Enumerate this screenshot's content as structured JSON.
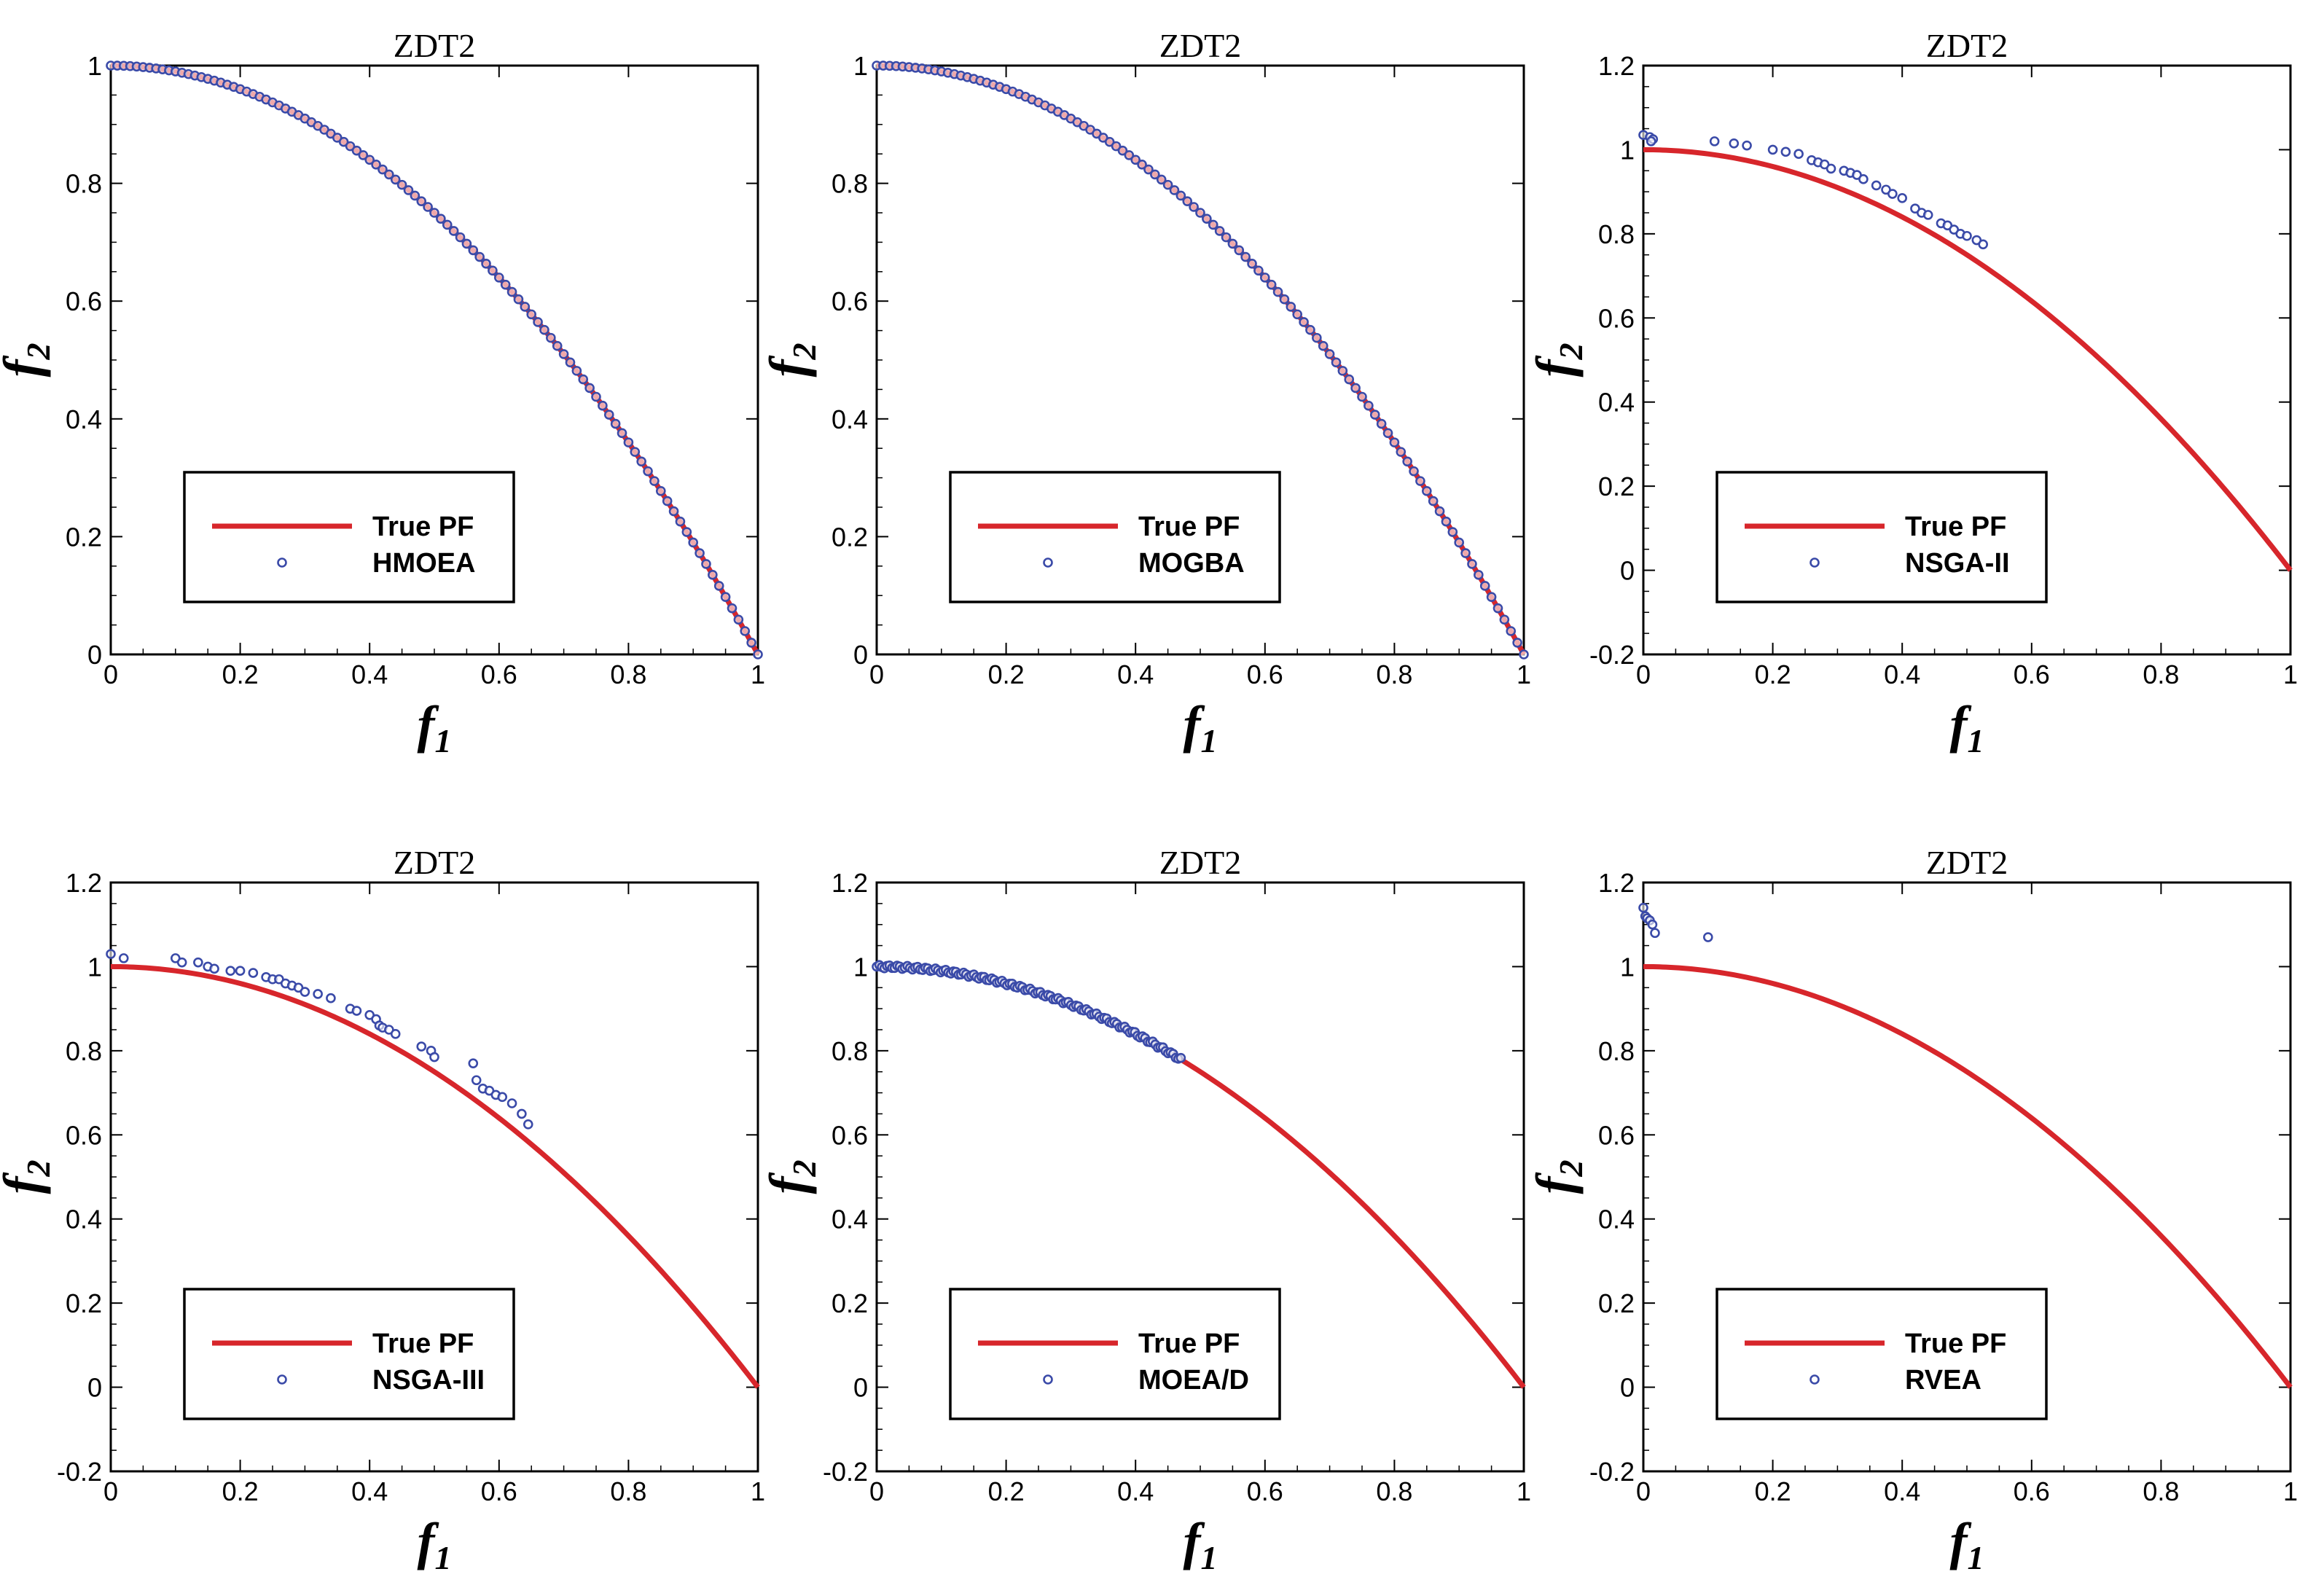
{
  "colors": {
    "true_pf": "#d7262b",
    "points": "#3a4aa8",
    "axis": "#000000"
  },
  "chart_data": [
    {
      "type": "scatter",
      "title": "ZDT2",
      "xlabel": "f1",
      "ylabel": "f2",
      "xlim": [
        0,
        1
      ],
      "ylim": [
        0,
        1
      ],
      "xticks": [
        "0",
        "0.2",
        "0.4",
        "0.6",
        "0.8",
        "1"
      ],
      "yticks": [
        "0",
        "0.2",
        "0.4",
        "0.6",
        "0.8",
        "1"
      ],
      "legend": {
        "placement": "lower-left",
        "line_label": "True PF",
        "marker_label": "HMOEA"
      },
      "series": [
        {
          "name": "True PF",
          "kind": "line",
          "function": "f2 = 1 - f1^2",
          "x": [
            0.0,
            0.2,
            0.4,
            0.6,
            0.8,
            1.0
          ],
          "y": [
            1.0,
            0.96,
            0.84,
            0.64,
            0.36,
            0.0
          ]
        },
        {
          "name": "HMOEA",
          "kind": "markers",
          "pattern": "uniform_on_front",
          "n_points": 101,
          "x_range": [
            0,
            1
          ]
        }
      ]
    },
    {
      "type": "scatter",
      "title": "ZDT2",
      "xlabel": "f1",
      "ylabel": "f2",
      "xlim": [
        0,
        1
      ],
      "ylim": [
        0,
        1
      ],
      "xticks": [
        "0",
        "0.2",
        "0.4",
        "0.6",
        "0.8",
        "1"
      ],
      "yticks": [
        "0",
        "0.2",
        "0.4",
        "0.6",
        "0.8",
        "1"
      ],
      "legend": {
        "placement": "lower-left",
        "line_label": "True PF",
        "marker_label": "MOGBA"
      },
      "series": [
        {
          "name": "True PF",
          "kind": "line",
          "function": "f2 = 1 - f1^2",
          "x": [
            0.0,
            0.2,
            0.4,
            0.6,
            0.8,
            1.0
          ],
          "y": [
            1.0,
            0.96,
            0.84,
            0.64,
            0.36,
            0.0
          ]
        },
        {
          "name": "MOGBA",
          "kind": "markers",
          "pattern": "uniform_on_front",
          "n_points": 101,
          "x_range": [
            0,
            1
          ]
        }
      ]
    },
    {
      "type": "scatter",
      "title": "ZDT2",
      "xlabel": "f1",
      "ylabel": "f2",
      "xlim": [
        0,
        1
      ],
      "ylim": [
        -0.2,
        1.2
      ],
      "xticks": [
        "0",
        "0.2",
        "0.4",
        "0.6",
        "0.8",
        "1"
      ],
      "yticks": [
        "-0.2",
        "0",
        "0.2",
        "0.4",
        "0.6",
        "0.8",
        "1",
        "1.2"
      ],
      "legend": {
        "placement": "lower-left",
        "line_label": "True PF",
        "marker_label": "NSGA-II"
      },
      "series": [
        {
          "name": "True PF",
          "kind": "line",
          "function": "f2 = 1 - f1^2",
          "x": [
            0.0,
            0.2,
            0.4,
            0.6,
            0.8,
            1.0
          ],
          "y": [
            1.0,
            0.96,
            0.84,
            0.64,
            0.36,
            0.0
          ]
        },
        {
          "name": "NSGA-II",
          "kind": "markers",
          "points": [
            [
              0.0,
              1.035
            ],
            [
              0.01,
              1.03
            ],
            [
              0.015,
              1.025
            ],
            [
              0.012,
              1.02
            ],
            [
              0.11,
              1.02
            ],
            [
              0.14,
              1.015
            ],
            [
              0.16,
              1.01
            ],
            [
              0.2,
              1.0
            ],
            [
              0.22,
              0.995
            ],
            [
              0.24,
              0.99
            ],
            [
              0.26,
              0.975
            ],
            [
              0.27,
              0.97
            ],
            [
              0.28,
              0.965
            ],
            [
              0.29,
              0.955
            ],
            [
              0.31,
              0.95
            ],
            [
              0.32,
              0.945
            ],
            [
              0.33,
              0.94
            ],
            [
              0.34,
              0.93
            ],
            [
              0.36,
              0.915
            ],
            [
              0.375,
              0.905
            ],
            [
              0.385,
              0.895
            ],
            [
              0.4,
              0.885
            ],
            [
              0.42,
              0.86
            ],
            [
              0.43,
              0.85
            ],
            [
              0.44,
              0.845
            ],
            [
              0.46,
              0.825
            ],
            [
              0.47,
              0.82
            ],
            [
              0.48,
              0.81
            ],
            [
              0.49,
              0.8
            ],
            [
              0.5,
              0.795
            ],
            [
              0.515,
              0.785
            ],
            [
              0.525,
              0.775
            ]
          ]
        }
      ]
    },
    {
      "type": "scatter",
      "title": "ZDT2",
      "xlabel": "f1",
      "ylabel": "f2",
      "xlim": [
        0,
        1
      ],
      "ylim": [
        -0.2,
        1.2
      ],
      "xticks": [
        "0",
        "0.2",
        "0.4",
        "0.6",
        "0.8",
        "1"
      ],
      "yticks": [
        "-0.2",
        "0",
        "0.2",
        "0.4",
        "0.6",
        "0.8",
        "1",
        "1.2"
      ],
      "legend": {
        "placement": "lower-left",
        "line_label": "True PF",
        "marker_label": "NSGA-III"
      },
      "series": [
        {
          "name": "True PF",
          "kind": "line",
          "function": "f2 = 1 - f1^2",
          "x": [
            0.0,
            0.2,
            0.4,
            0.6,
            0.8,
            1.0
          ],
          "y": [
            1.0,
            0.96,
            0.84,
            0.64,
            0.36,
            0.0
          ]
        },
        {
          "name": "NSGA-III",
          "kind": "markers",
          "points": [
            [
              0.0,
              1.03
            ],
            [
              0.02,
              1.02
            ],
            [
              0.1,
              1.02
            ],
            [
              0.11,
              1.01
            ],
            [
              0.135,
              1.01
            ],
            [
              0.15,
              1.0
            ],
            [
              0.16,
              0.995
            ],
            [
              0.185,
              0.99
            ],
            [
              0.2,
              0.99
            ],
            [
              0.22,
              0.985
            ],
            [
              0.24,
              0.975
            ],
            [
              0.25,
              0.97
            ],
            [
              0.26,
              0.97
            ],
            [
              0.27,
              0.96
            ],
            [
              0.28,
              0.955
            ],
            [
              0.29,
              0.95
            ],
            [
              0.3,
              0.94
            ],
            [
              0.32,
              0.935
            ],
            [
              0.34,
              0.925
            ],
            [
              0.37,
              0.9
            ],
            [
              0.38,
              0.895
            ],
            [
              0.4,
              0.885
            ],
            [
              0.41,
              0.875
            ],
            [
              0.415,
              0.86
            ],
            [
              0.42,
              0.855
            ],
            [
              0.43,
              0.85
            ],
            [
              0.44,
              0.84
            ],
            [
              0.48,
              0.81
            ],
            [
              0.495,
              0.8
            ],
            [
              0.5,
              0.785
            ],
            [
              0.56,
              0.77
            ],
            [
              0.565,
              0.73
            ],
            [
              0.575,
              0.71
            ],
            [
              0.585,
              0.705
            ],
            [
              0.595,
              0.695
            ],
            [
              0.605,
              0.69
            ],
            [
              0.62,
              0.675
            ],
            [
              0.635,
              0.65
            ],
            [
              0.645,
              0.625
            ]
          ]
        }
      ]
    },
    {
      "type": "scatter",
      "title": "ZDT2",
      "xlabel": "f1",
      "ylabel": "f2",
      "xlim": [
        0,
        1
      ],
      "ylim": [
        -0.2,
        1.2
      ],
      "xticks": [
        "0",
        "0.2",
        "0.4",
        "0.6",
        "0.8",
        "1"
      ],
      "yticks": [
        "-0.2",
        "0",
        "0.2",
        "0.4",
        "0.6",
        "0.8",
        "1",
        "1.2"
      ],
      "legend": {
        "placement": "lower-left",
        "line_label": "True PF",
        "marker_label": "MOEA/D"
      },
      "series": [
        {
          "name": "True PF",
          "kind": "line",
          "function": "f2 = 1 - f1^2",
          "x": [
            0.0,
            0.2,
            0.4,
            0.6,
            0.8,
            1.0
          ],
          "y": [
            1.0,
            0.96,
            0.84,
            0.64,
            0.36,
            0.0
          ]
        },
        {
          "name": "MOEA/D",
          "kind": "markers",
          "pattern": "dense_on_front",
          "n_points": 120,
          "x_range": [
            0,
            0.47
          ]
        }
      ]
    },
    {
      "type": "scatter",
      "title": "ZDT2",
      "xlabel": "f1",
      "ylabel": "f2",
      "xlim": [
        0,
        1
      ],
      "ylim": [
        -0.2,
        1.2
      ],
      "xticks": [
        "0",
        "0.2",
        "0.4",
        "0.6",
        "0.8",
        "1"
      ],
      "yticks": [
        "-0.2",
        "0",
        "0.2",
        "0.4",
        "0.6",
        "0.8",
        "1",
        "1.2"
      ],
      "legend": {
        "placement": "lower-left",
        "line_label": "True PF",
        "marker_label": "RVEA"
      },
      "series": [
        {
          "name": "True PF",
          "kind": "line",
          "function": "f2 = 1 - f1^2",
          "x": [
            0.0,
            0.2,
            0.4,
            0.6,
            0.8,
            1.0
          ],
          "y": [
            1.0,
            0.96,
            0.84,
            0.64,
            0.36,
            0.0
          ]
        },
        {
          "name": "RVEA",
          "kind": "markers",
          "points": [
            [
              0.0,
              1.14
            ],
            [
              0.003,
              1.12
            ],
            [
              0.006,
              1.115
            ],
            [
              0.01,
              1.11
            ],
            [
              0.014,
              1.1
            ],
            [
              0.018,
              1.08
            ],
            [
              0.1,
              1.07
            ]
          ]
        }
      ]
    }
  ]
}
